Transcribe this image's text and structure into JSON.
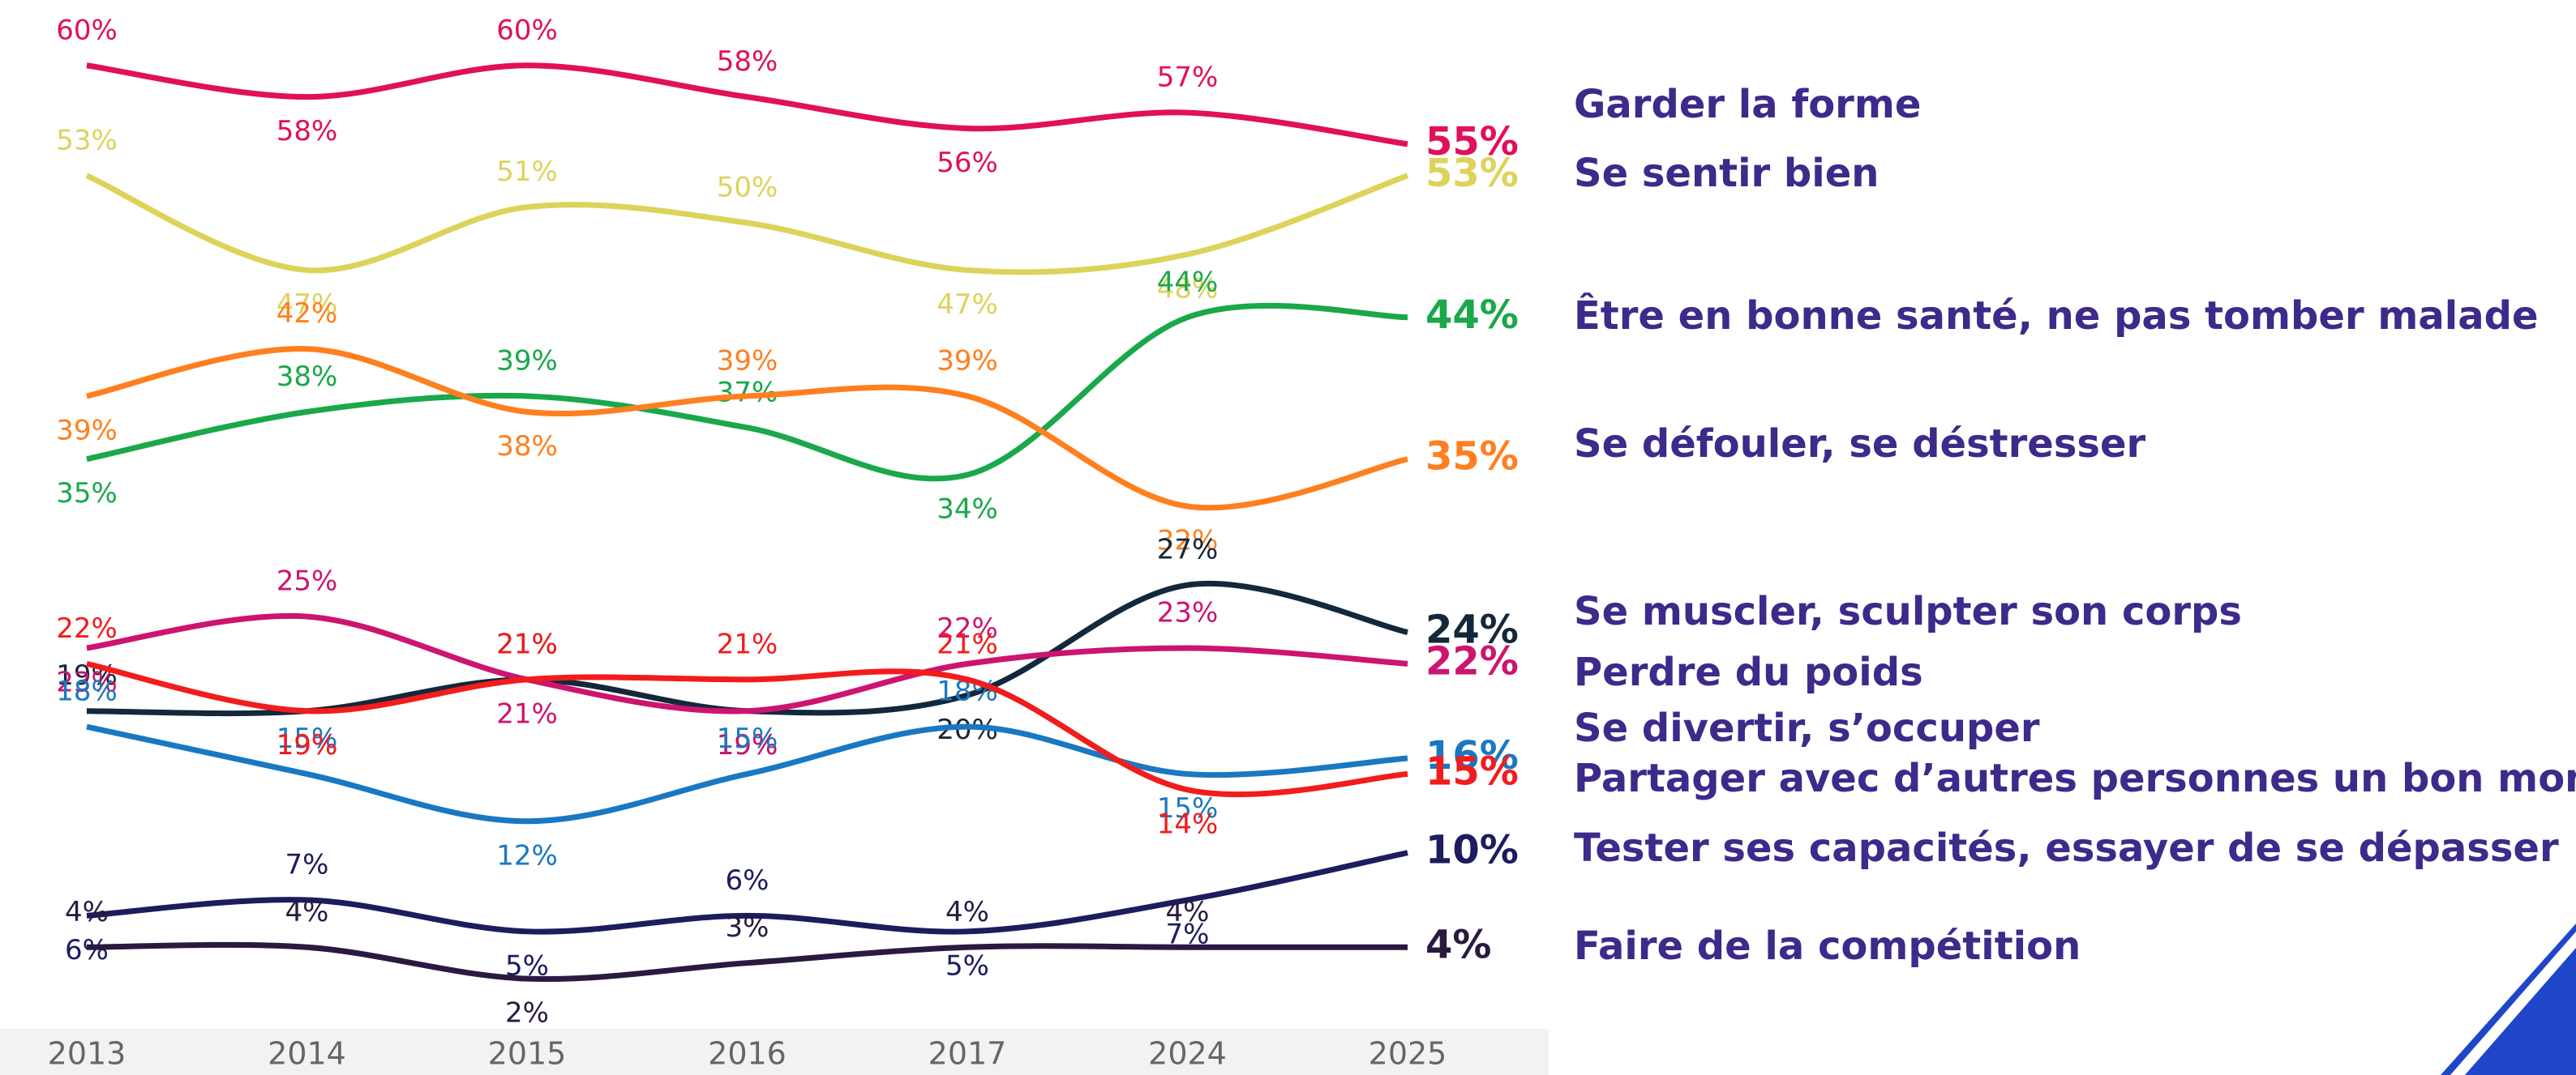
{
  "chart_data": {
    "type": "line",
    "categories": [
      "2013",
      "2014",
      "2015",
      "2016",
      "2017",
      "2024",
      "2025"
    ],
    "ylim": [
      0,
      64
    ],
    "series": [
      {
        "name": "Garder la forme",
        "color": "#e0105a",
        "values": [
          60,
          58,
          60,
          58,
          56,
          57,
          55
        ],
        "value_labels": [
          "60%",
          "58%",
          "60%",
          "58%",
          "56%",
          "57%",
          "55%"
        ]
      },
      {
        "name": "Se sentir bien",
        "color": "#ddd35a",
        "values": [
          53,
          47,
          51,
          50,
          47,
          48,
          53
        ],
        "value_labels": [
          "53%",
          "47%",
          "51%",
          "50%",
          "47%",
          "48%",
          "53%"
        ]
      },
      {
        "name": "Être en bonne santé, ne pas tomber malade",
        "color": "#1aa84a",
        "values": [
          35,
          38,
          39,
          37,
          34,
          44,
          44
        ],
        "value_labels": [
          "35%",
          "38%",
          "39%",
          "37%",
          "34%",
          "44%",
          "44%"
        ]
      },
      {
        "name": "Se défouler, se déstresser",
        "color": "#ff7f1e",
        "values": [
          39,
          42,
          38,
          39,
          39,
          32,
          35
        ],
        "value_labels": [
          "39%",
          "42%",
          "38%",
          "39%",
          "39%",
          "32%",
          "35%"
        ]
      },
      {
        "name": "Se muscler, sculpter son corps",
        "color": "#13283a",
        "values": [
          19,
          19,
          21,
          19,
          20,
          27,
          24
        ],
        "value_labels": [
          "19%",
          "19%",
          "21%",
          "19%",
          "20%",
          "27%",
          "24%"
        ]
      },
      {
        "name": "Perdre du poids",
        "color": "#cc1470",
        "values": [
          23,
          25,
          21,
          19,
          22,
          23,
          22
        ],
        "value_labels": [
          "23%",
          "25%",
          "21%",
          "19%",
          "22%",
          "23%",
          "22%"
        ]
      },
      {
        "name": "Se divertir, s’occuper",
        "color": "#1a78c2",
        "values": [
          18,
          15,
          12,
          15,
          18,
          15,
          16
        ],
        "value_labels": [
          "18%",
          "15%",
          "12%",
          "15%",
          "18%",
          "15%",
          "16%"
        ]
      },
      {
        "name": "Partager avec d’autres personnes un bon moment",
        "color": "#f21c1c",
        "values": [
          22,
          19,
          21,
          21,
          21,
          14,
          15
        ],
        "value_labels": [
          "22%",
          "19%",
          "21%",
          "21%",
          "21%",
          "14%",
          "15%"
        ]
      },
      {
        "name": "Tester ses capacités, essayer de se dépasser",
        "color": "#1c1c5e",
        "values": [
          6,
          7,
          5,
          6,
          5,
          7,
          10
        ],
        "value_labels": [
          "6%",
          "7%",
          "5%",
          "6%",
          "5%",
          "7%",
          "10%"
        ]
      },
      {
        "name": "Faire de la compétition",
        "color": "#2a1a40",
        "values": [
          4,
          4,
          2,
          3,
          4,
          4,
          4
        ],
        "value_labels": [
          "4%",
          "4%",
          "2%",
          "3%",
          "4%",
          "4%",
          "4%"
        ]
      }
    ]
  }
}
